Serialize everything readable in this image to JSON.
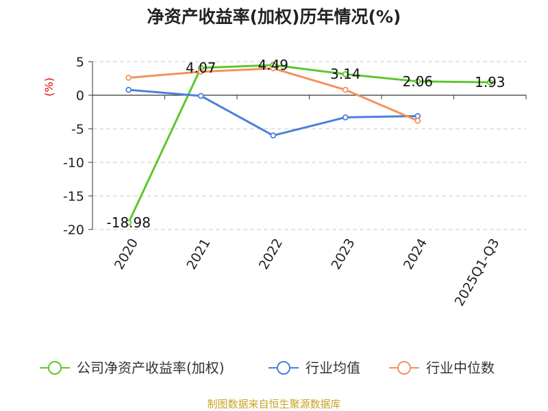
{
  "chart_data": {
    "type": "line",
    "title": "净资产收益率(加权)历年情况(%)",
    "ylabel": "(%)",
    "xlabel": "",
    "ylim": [
      -20,
      5
    ],
    "yticks": [
      5,
      0,
      -5,
      -10,
      -15,
      -20
    ],
    "grid": true,
    "legend": "bottom",
    "categories": [
      "2020",
      "2021",
      "2022",
      "2023",
      "2024",
      "2025Q1-Q3"
    ],
    "series": [
      {
        "name": "公司净资产收益率(加权)",
        "color": "#5cc72c",
        "values": [
          -18.98,
          4.07,
          4.49,
          3.14,
          2.06,
          1.93
        ],
        "labels": [
          "-18.98",
          "4.07",
          "4.49",
          "3.14",
          "2.06",
          "1.93"
        ]
      },
      {
        "name": "行业均值",
        "color": "#4a7fdc",
        "values": [
          0.8,
          -0.1,
          -6.0,
          -3.3,
          -3.1,
          null
        ]
      },
      {
        "name": "行业中位数",
        "color": "#f4915a",
        "values": [
          2.6,
          3.5,
          4.0,
          0.8,
          -3.8,
          null
        ]
      }
    ],
    "source": "制图数据来自恒生聚源数据库"
  }
}
